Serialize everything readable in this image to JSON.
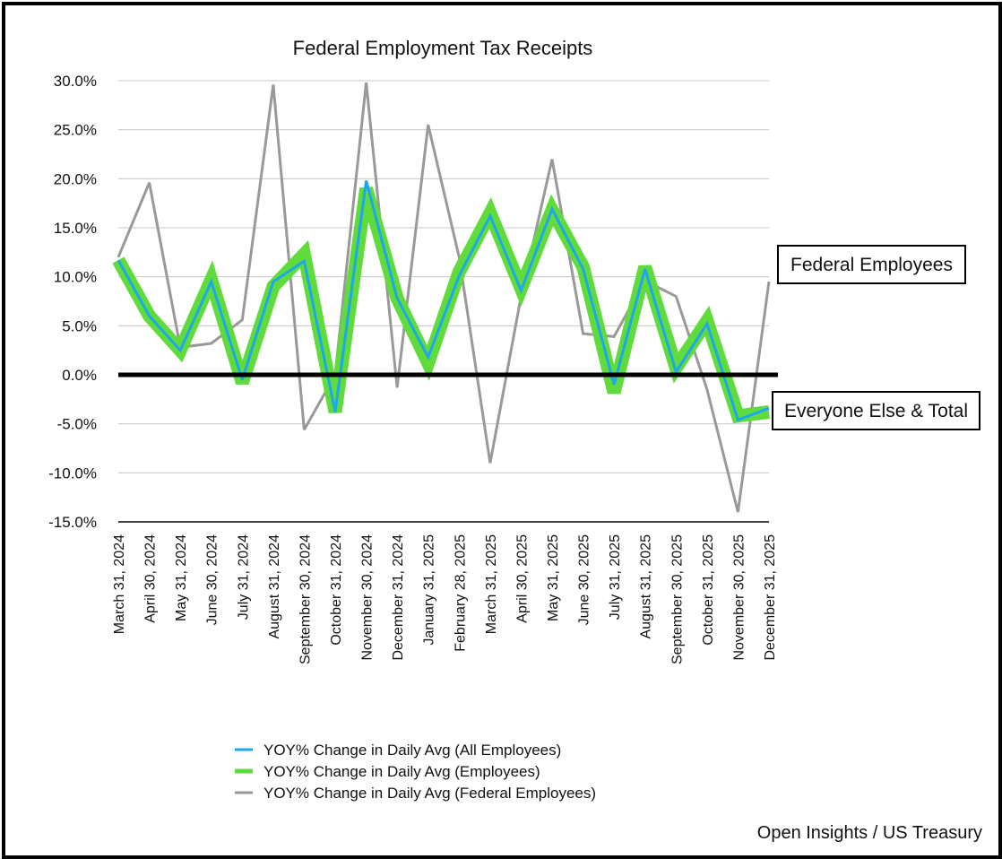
{
  "chart_data": {
    "type": "line",
    "title": "Federal Employment Tax Receipts",
    "xlabel": "",
    "ylabel": "",
    "ylim": [
      -15,
      30
    ],
    "yticks": [
      30,
      25,
      20,
      15,
      10,
      5,
      0,
      -5,
      -10,
      -15
    ],
    "ytick_labels": [
      "30.0%",
      "25.0%",
      "20.0%",
      "15.0%",
      "10.0%",
      "5.0%",
      "0.0%",
      "-5.0%",
      "-10.0%",
      "-15.0%"
    ],
    "categories": [
      "March 31, 2024",
      "April 30, 2024",
      "May 31, 2024",
      "June 30, 2024",
      "July 31, 2024",
      "August 31, 2024",
      "September 30, 2024",
      "October 31, 2024",
      "November 30, 2024",
      "December 31, 2024",
      "January 31, 2025",
      "February 28, 2025",
      "March 31, 2025",
      "April 30, 2025",
      "May 31, 2025",
      "June 30, 2025",
      "July 31, 2025",
      "August 31, 2025",
      "September 30, 2025",
      "October 31, 2025",
      "November 30, 2025",
      "December 31, 2025"
    ],
    "grid": true,
    "series": [
      {
        "name": "YOY% Change in Daily Avg (Federal Employees)",
        "color": "#999999",
        "values": [
          12.0,
          19.6,
          2.8,
          3.2,
          5.6,
          29.6,
          -5.6,
          0.0,
          29.8,
          -1.3,
          25.5,
          12.0,
          -9.0,
          8.0,
          22.0,
          4.2,
          3.9,
          9.6,
          8.0,
          -1.5,
          -14.0,
          9.5
        ]
      },
      {
        "name": "YOY% Change in Daily Avg (Employees)",
        "color": "#5fdc3c",
        "values": [
          11.7,
          6.0,
          2.5,
          9.7,
          -0.8,
          9.0,
          12.3,
          -3.8,
          19.0,
          7.8,
          1.2,
          10.5,
          16.5,
          8.8,
          16.8,
          11.0,
          -1.8,
          11.0,
          0.7,
          5.5,
          -4.2,
          -3.8
        ]
      },
      {
        "name": "YOY% Change in Daily Avg (All Employees)",
        "color": "#1ea7ef",
        "values": [
          11.7,
          6.0,
          2.5,
          9.5,
          -0.5,
          9.5,
          11.6,
          -3.8,
          19.8,
          7.8,
          1.8,
          10.1,
          16.2,
          8.6,
          16.9,
          10.8,
          -1.0,
          10.8,
          0.3,
          5.2,
          -4.6,
          -3.4
        ]
      }
    ],
    "zero_line": {
      "value": 0,
      "color": "#000000"
    },
    "legend": {
      "placement": "bottom-center",
      "entries": [
        {
          "label": "YOY% Change in Daily Avg (All Employees)",
          "color": "#1ea7ef"
        },
        {
          "label": "YOY% Change in Daily Avg (Employees)",
          "color": "#5fdc3c"
        },
        {
          "label": "YOY% Change in Daily Avg (Federal Employees)",
          "color": "#999999"
        }
      ]
    },
    "annotations": [
      {
        "text": "Federal Employees",
        "points_to": "Federal Employees series"
      },
      {
        "text": "Everyone Else & Total",
        "points_to": "All Employees / Employees series"
      }
    ]
  },
  "source": "Open Insights / US Treasury"
}
